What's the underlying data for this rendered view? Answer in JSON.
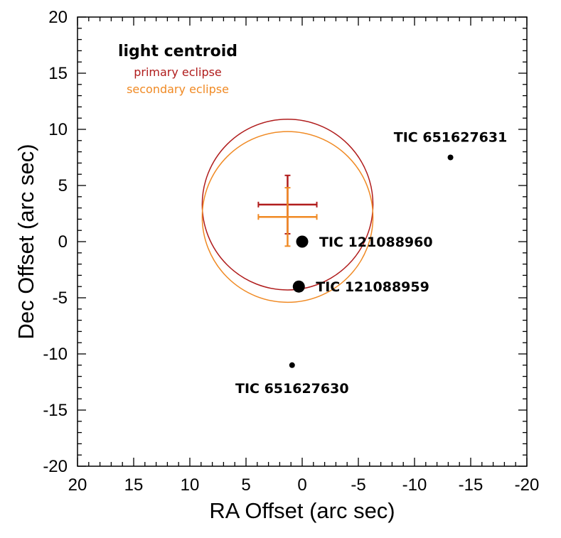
{
  "chart_data": {
    "type": "scatter",
    "xlabel": "RA Offset (arc sec)",
    "ylabel": "Dec Offset (arc sec)",
    "xlim": [
      20,
      -20
    ],
    "ylim": [
      -20,
      20
    ],
    "x_ticks": [
      20,
      15,
      10,
      5,
      0,
      -5,
      -10,
      -15,
      -20
    ],
    "y_ticks": [
      20,
      15,
      10,
      5,
      0,
      -5,
      -10,
      -15,
      -20
    ],
    "x_tick_labels": [
      "20",
      "15",
      "10",
      "5",
      "0",
      "-5",
      "-10",
      "-15",
      "-20"
    ],
    "y_tick_labels": [
      "20",
      "15",
      "10",
      "5",
      "0",
      "-5",
      "-10",
      "-15",
      "-20"
    ],
    "minor_tick_step": 1,
    "grid": false,
    "legend": {
      "title": "light centroid",
      "placement": "top-left",
      "entries": [
        {
          "label": "primary eclipse",
          "color": "#b01c1c"
        },
        {
          "label": "secondary eclipse",
          "color": "#f08a24"
        }
      ]
    },
    "stars": [
      {
        "name": "TIC 121088960",
        "ra": 0.0,
        "dec": 0.0,
        "size": "large"
      },
      {
        "name": "TIC 121088959",
        "ra": 0.3,
        "dec": -4.0,
        "size": "large"
      },
      {
        "name": "TIC 651627631",
        "ra": -13.2,
        "dec": 7.5,
        "size": "small"
      },
      {
        "name": "TIC 651627630",
        "ra": 0.9,
        "dec": -11.0,
        "size": "small"
      }
    ],
    "centroids": [
      {
        "name": "primary eclipse",
        "color": "#b01c1c",
        "ra": 1.3,
        "dec": 3.3,
        "ra_err": 2.6,
        "dec_err": 2.6,
        "radius": 7.6
      },
      {
        "name": "secondary eclipse",
        "color": "#f08a24",
        "ra": 1.3,
        "dec": 2.2,
        "ra_err": 2.6,
        "dec_err": 2.6,
        "radius": 7.6
      }
    ]
  }
}
